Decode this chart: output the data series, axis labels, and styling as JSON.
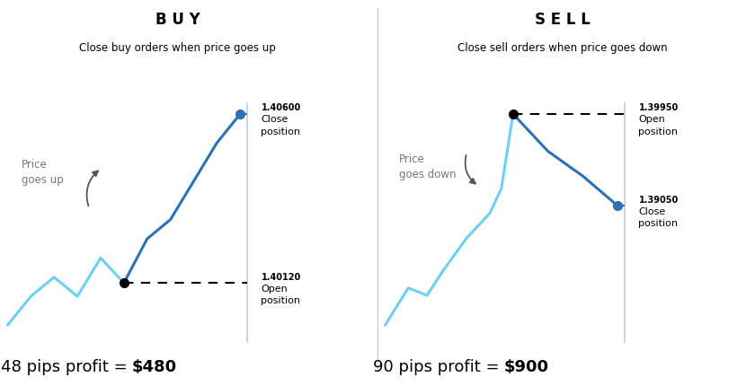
{
  "bg_color": "#ffffff",
  "light_blue": "#6dd0f0",
  "dark_blue": "#2a72b5",
  "black": "#111111",
  "gray_line": "#cccccc",
  "dashed_blue": "#2a72b5",
  "arrow_gray": "#999999",
  "buy_title": "B U Y",
  "buy_subtitle": "Close buy orders when price goes up",
  "buy_footer": "48 pips profit = ",
  "buy_footer_bold": "$480",
  "buy_price_goes": "Price\ngoes up",
  "buy_open_label": "1.40120",
  "buy_close_label": "1.40600",
  "buy_open_text": "Open\nposition",
  "buy_close_text": "Close\nposition",
  "sell_title": "S E L L",
  "sell_subtitle": "Close sell orders when price goes down",
  "sell_footer": "90 pips profit = ",
  "sell_footer_bold": "$900",
  "sell_price_goes": "Price\ngoes down",
  "sell_open_label": "1.39950",
  "sell_close_label": "1.39050",
  "sell_open_text": "Open\nposition",
  "sell_close_text": "Close\nposition",
  "buy_line_x": [
    0,
    1,
    2,
    3,
    4,
    5,
    6,
    7,
    8,
    9,
    10
  ],
  "buy_line_y": [
    0,
    1.5,
    2.5,
    1.5,
    3.5,
    2.2,
    4.5,
    5.5,
    7.5,
    9.5,
    11
  ],
  "buy_open_idx": 5,
  "buy_close_idx": 10,
  "sell_line_x": [
    0,
    1,
    1.8,
    2.5,
    3.5,
    4.5,
    5,
    5.5,
    7,
    8.5,
    10
  ],
  "sell_line_y": [
    0,
    1.5,
    1.2,
    2.2,
    3.5,
    4.5,
    5.5,
    8.5,
    7.0,
    6.0,
    4.8
  ],
  "sell_open_idx": 7,
  "sell_close_idx": 10
}
